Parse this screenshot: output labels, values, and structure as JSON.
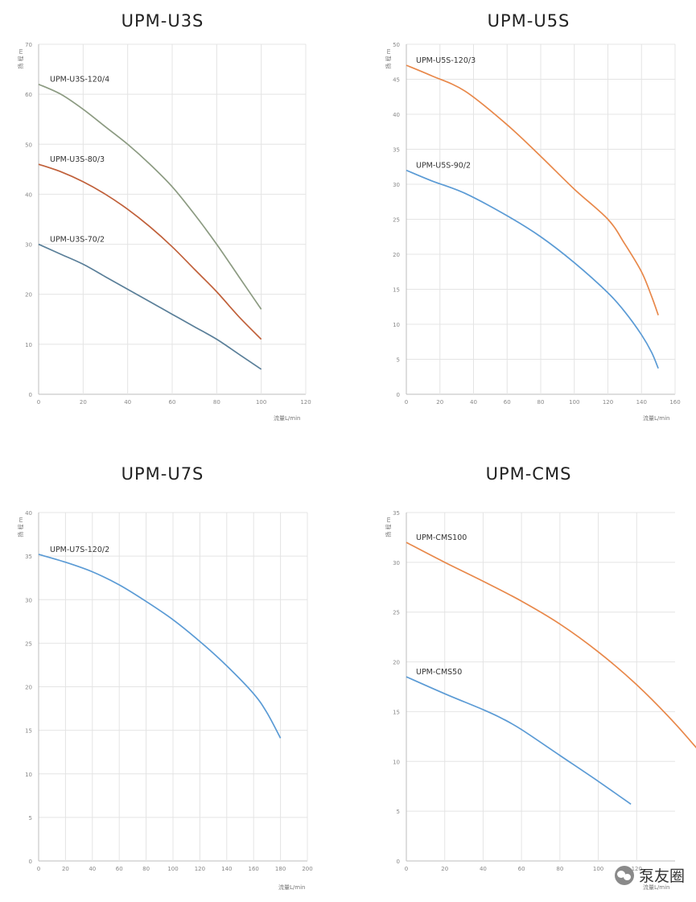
{
  "chart_data": [
    {
      "type": "line",
      "title": "UPM-U3S",
      "xlabel": "流量L/min",
      "ylabel": "扬 程 m",
      "xlim": [
        0,
        120
      ],
      "ylim": [
        0,
        70
      ],
      "xticks": [
        0,
        20,
        40,
        60,
        80,
        100,
        120
      ],
      "yticks": [
        0,
        10,
        20,
        30,
        40,
        50,
        60,
        70
      ],
      "grid": true,
      "series": [
        {
          "name": "UPM-U3S-120/4",
          "color": "#8c9b82",
          "x": [
            0,
            10,
            20,
            30,
            40,
            50,
            60,
            70,
            80,
            90,
            100
          ],
          "y": [
            62,
            60,
            57,
            53.5,
            50,
            46,
            41.5,
            36,
            30,
            23.5,
            17
          ]
        },
        {
          "name": "UPM-U3S-80/3",
          "color": "#c0603a",
          "x": [
            0,
            10,
            20,
            30,
            40,
            50,
            60,
            70,
            80,
            90,
            100
          ],
          "y": [
            46,
            44.5,
            42.5,
            40,
            37,
            33.5,
            29.5,
            25,
            20.5,
            15.5,
            11
          ]
        },
        {
          "name": "UPM-U3S-70/2",
          "color": "#5a7f99",
          "x": [
            0,
            10,
            20,
            30,
            40,
            50,
            60,
            70,
            80,
            90,
            100
          ],
          "y": [
            30,
            28,
            26,
            23.5,
            21,
            18.5,
            16,
            13.5,
            11,
            8,
            5
          ]
        }
      ]
    },
    {
      "type": "line",
      "title": "UPM-U5S",
      "xlabel": "流量L/min",
      "ylabel": "扬 程 m",
      "xlim": [
        0,
        160
      ],
      "ylim": [
        0,
        50
      ],
      "xticks": [
        0,
        20,
        40,
        60,
        80,
        100,
        120,
        140,
        160
      ],
      "yticks": [
        0,
        5,
        10,
        15,
        20,
        25,
        30,
        35,
        40,
        45,
        50
      ],
      "grid": true,
      "series": [
        {
          "name": "UPM-U5S-120/3",
          "color": "#e8884a",
          "x": [
            0,
            15,
            35,
            60,
            80,
            100,
            120,
            130,
            140,
            146,
            150
          ],
          "y": [
            47,
            45.5,
            43.3,
            38.5,
            34,
            29.3,
            25,
            21.5,
            17.5,
            14,
            11.3
          ]
        },
        {
          "name": "UPM-U5S-90/2",
          "color": "#5b9bd5",
          "x": [
            0,
            15,
            35,
            60,
            80,
            100,
            120,
            130,
            140,
            146,
            150
          ],
          "y": [
            32,
            30.5,
            28.7,
            25.5,
            22.5,
            18.8,
            14.5,
            11.8,
            8.5,
            6,
            3.7
          ]
        }
      ]
    },
    {
      "type": "line",
      "title": "UPM-U7S",
      "xlabel": "流量L/min",
      "ylabel": "扬 程 m",
      "xlim": [
        0,
        200
      ],
      "ylim": [
        0,
        40
      ],
      "xticks": [
        0,
        20,
        40,
        60,
        80,
        100,
        120,
        140,
        160,
        180,
        200
      ],
      "yticks": [
        0,
        5,
        10,
        15,
        20,
        25,
        30,
        35,
        40
      ],
      "grid": true,
      "series": [
        {
          "name": "UPM-U7S-120/2",
          "color": "#5b9bd5",
          "x": [
            0,
            20,
            40,
            60,
            80,
            100,
            120,
            140,
            160,
            170,
            180
          ],
          "y": [
            35.2,
            34.3,
            33.2,
            31.7,
            29.8,
            27.7,
            25.2,
            22.4,
            19.2,
            17,
            14.1
          ]
        }
      ]
    },
    {
      "type": "line",
      "title": "UPM-CMS",
      "xlabel": "流量L/min",
      "ylabel": "扬 程 m",
      "xlim": [
        0,
        140
      ],
      "ylim": [
        0,
        35
      ],
      "xticks": [
        0,
        20,
        40,
        60,
        80,
        100,
        120
      ],
      "yticks": [
        0,
        5,
        10,
        15,
        20,
        25,
        30,
        35
      ],
      "grid": true,
      "series": [
        {
          "name": "UPM-CMS100",
          "color": "#e8884a",
          "x": [
            0,
            20,
            40,
            60,
            80,
            100,
            120,
            140,
            158
          ],
          "y": [
            32,
            30,
            28.1,
            26.1,
            23.8,
            21,
            17.7,
            13.8,
            9.8
          ]
        },
        {
          "name": "UPM-CMS50",
          "color": "#5b9bd5",
          "x": [
            0,
            20,
            40,
            50,
            60,
            80,
            100,
            117
          ],
          "y": [
            18.5,
            16.8,
            15.2,
            14.3,
            13.2,
            10.6,
            8,
            5.7
          ]
        }
      ]
    }
  ],
  "watermark": {
    "text": "泵友圈",
    "icon": "wechat-icon"
  }
}
